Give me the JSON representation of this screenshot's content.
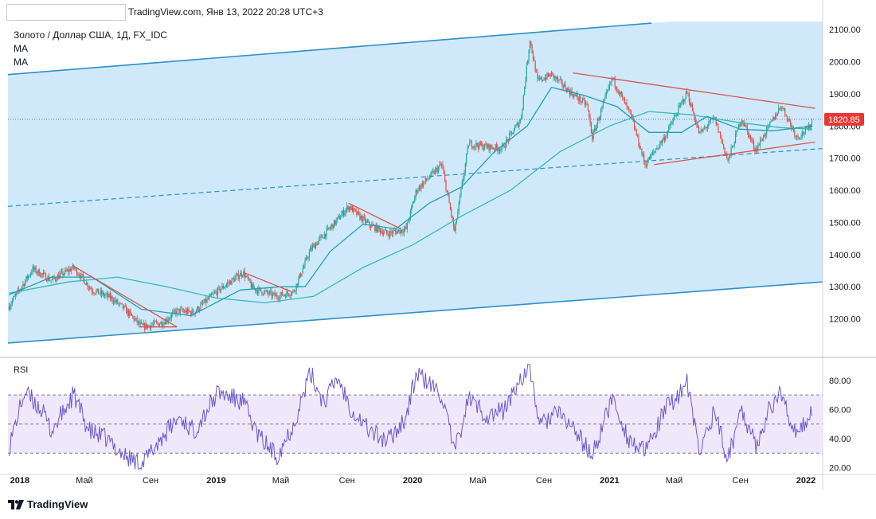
{
  "header": {
    "title": "TradingView.com, Янв 13, 2022 20:28 UTC+3"
  },
  "legend": {
    "symbol": "Золото / Доллар США, 1Д, FX_IDC",
    "ma1": "MA",
    "ma2": "MA"
  },
  "rsi": {
    "label": "RSI"
  },
  "logo": {
    "text": "TradingView",
    "icon": "tradingview-logo-icon"
  },
  "colors": {
    "channel_fill": "#cfe9fb",
    "channel_line": "#2e8fc9",
    "candle_up": "#26a69a",
    "candle_down": "#e0504a",
    "ma_fast": "#1f9fb3",
    "ma_slow": "#36b9b0",
    "trend_red": "#d9534f",
    "rsi_line": "#6a5acd",
    "rsi_band": "#efe8fb",
    "price_badge": "#e53935"
  },
  "chart_data": {
    "type": "candlestick",
    "symbol": "Золото / Доллар США, 1Д, FX_IDC",
    "price_axis": {
      "range": [
        1100,
        2125
      ],
      "ticks": [
        "2100.00",
        "2000.00",
        "1900.00",
        "1800.00",
        "1700.00",
        "1600.00",
        "1500.00",
        "1400.00",
        "1300.00",
        "1200.00"
      ]
    },
    "last_price": "1820.85",
    "time_axis": {
      "range": [
        "2017-12-10",
        "2022-02-01"
      ],
      "ticks": [
        {
          "label": "2018",
          "date": "2018-01-01"
        },
        {
          "label": "Май",
          "date": "2018-05-01"
        },
        {
          "label": "Сен",
          "date": "2018-09-01"
        },
        {
          "label": "2019",
          "date": "2019-01-01"
        },
        {
          "label": "Май",
          "date": "2019-05-01"
        },
        {
          "label": "Сен",
          "date": "2019-09-01"
        },
        {
          "label": "2020",
          "date": "2020-01-01"
        },
        {
          "label": "Май",
          "date": "2020-05-01"
        },
        {
          "label": "Сен",
          "date": "2020-09-01"
        },
        {
          "label": "2021",
          "date": "2021-01-01"
        },
        {
          "label": "Май",
          "date": "2021-05-01"
        },
        {
          "label": "Сен",
          "date": "2021-09-01"
        },
        {
          "label": "2022",
          "date": "2022-01-01"
        }
      ]
    },
    "price_path": [
      [
        "2017-12-12",
        1240
      ],
      [
        "2018-01-25",
        1355
      ],
      [
        "2018-03-01",
        1320
      ],
      [
        "2018-04-11",
        1360
      ],
      [
        "2018-05-15",
        1290
      ],
      [
        "2018-06-20",
        1265
      ],
      [
        "2018-07-15",
        1230
      ],
      [
        "2018-08-16",
        1175
      ],
      [
        "2018-09-25",
        1190
      ],
      [
        "2018-10-20",
        1225
      ],
      [
        "2018-11-20",
        1220
      ],
      [
        "2018-12-31",
        1282
      ],
      [
        "2019-02-20",
        1345
      ],
      [
        "2019-03-10",
        1295
      ],
      [
        "2019-04-23",
        1270
      ],
      [
        "2019-05-25",
        1285
      ],
      [
        "2019-06-25",
        1415
      ],
      [
        "2019-08-10",
        1500
      ],
      [
        "2019-09-04",
        1550
      ],
      [
        "2019-10-10",
        1495
      ],
      [
        "2019-11-15",
        1465
      ],
      [
        "2019-12-20",
        1480
      ],
      [
        "2020-01-08",
        1600
      ],
      [
        "2020-02-24",
        1680
      ],
      [
        "2020-03-19",
        1470
      ],
      [
        "2020-04-14",
        1745
      ],
      [
        "2020-05-20",
        1735
      ],
      [
        "2020-06-15",
        1730
      ],
      [
        "2020-07-20",
        1820
      ],
      [
        "2020-08-06",
        2070
      ],
      [
        "2020-08-20",
        1940
      ],
      [
        "2020-09-15",
        1960
      ],
      [
        "2020-10-20",
        1905
      ],
      [
        "2020-11-20",
        1865
      ],
      [
        "2020-11-30",
        1765
      ],
      [
        "2021-01-06",
        1950
      ],
      [
        "2021-02-10",
        1830
      ],
      [
        "2021-03-08",
        1680
      ],
      [
        "2021-04-15",
        1770
      ],
      [
        "2021-05-25",
        1905
      ],
      [
        "2021-06-17",
        1775
      ],
      [
        "2021-07-15",
        1825
      ],
      [
        "2021-08-09",
        1690
      ],
      [
        "2021-09-03",
        1825
      ],
      [
        "2021-09-29",
        1725
      ],
      [
        "2021-10-25",
        1800
      ],
      [
        "2021-11-16",
        1865
      ],
      [
        "2021-12-15",
        1765
      ],
      [
        "2022-01-05",
        1790
      ],
      [
        "2022-01-13",
        1820
      ]
    ],
    "ma_fast_path": [
      [
        "2017-12-12",
        1275
      ],
      [
        "2018-03-01",
        1330
      ],
      [
        "2018-05-15",
        1330
      ],
      [
        "2018-08-15",
        1230
      ],
      [
        "2018-11-15",
        1210
      ],
      [
        "2019-02-15",
        1290
      ],
      [
        "2019-05-01",
        1300
      ],
      [
        "2019-06-15",
        1300
      ],
      [
        "2019-08-01",
        1410
      ],
      [
        "2019-10-01",
        1495
      ],
      [
        "2019-12-01",
        1480
      ],
      [
        "2020-02-01",
        1560
      ],
      [
        "2020-04-01",
        1610
      ],
      [
        "2020-06-01",
        1720
      ],
      [
        "2020-08-01",
        1800
      ],
      [
        "2020-09-15",
        1920
      ],
      [
        "2020-11-15",
        1895
      ],
      [
        "2021-01-15",
        1860
      ],
      [
        "2021-03-15",
        1780
      ],
      [
        "2021-05-15",
        1780
      ],
      [
        "2021-07-01",
        1830
      ],
      [
        "2021-09-01",
        1790
      ],
      [
        "2021-11-01",
        1785
      ],
      [
        "2022-01-13",
        1800
      ]
    ],
    "ma_slow_path": [
      [
        "2017-12-12",
        1280
      ],
      [
        "2018-04-01",
        1315
      ],
      [
        "2018-07-01",
        1330
      ],
      [
        "2018-10-01",
        1300
      ],
      [
        "2019-01-01",
        1265
      ],
      [
        "2019-04-01",
        1250
      ],
      [
        "2019-07-01",
        1270
      ],
      [
        "2019-10-01",
        1360
      ],
      [
        "2020-01-01",
        1430
      ],
      [
        "2020-04-01",
        1520
      ],
      [
        "2020-07-01",
        1600
      ],
      [
        "2020-10-01",
        1720
      ],
      [
        "2021-01-01",
        1800
      ],
      [
        "2021-03-15",
        1845
      ],
      [
        "2021-06-01",
        1835
      ],
      [
        "2021-09-01",
        1810
      ],
      [
        "2021-11-15",
        1795
      ],
      [
        "2022-01-13",
        1790
      ]
    ],
    "channel": {
      "upper": [
        [
          "2017-12-10",
          1960
        ],
        [
          "2021-03-20",
          2120
        ]
      ],
      "lower": [
        [
          "2017-12-10",
          1125
        ],
        [
          "2022-02-01",
          1315
        ]
      ],
      "mid_dashed": [
        [
          "2017-12-10",
          1550
        ],
        [
          "2022-02-01",
          1730
        ]
      ]
    },
    "trend_lines": [
      [
        [
          "2018-04-10",
          1365
        ],
        [
          "2018-10-20",
          1175
        ]
      ],
      [
        [
          "2018-08-10",
          1175
        ],
        [
          "2018-10-20",
          1175
        ]
      ],
      [
        [
          "2019-02-20",
          1345
        ],
        [
          "2019-05-20",
          1285
        ]
      ],
      [
        [
          "2019-09-04",
          1560
        ],
        [
          "2019-12-10",
          1480
        ]
      ],
      [
        [
          "2020-10-25",
          1965
        ],
        [
          "2022-01-18",
          1855
        ]
      ],
      [
        [
          "2021-03-25",
          1680
        ],
        [
          "2022-01-18",
          1750
        ]
      ]
    ],
    "rsi_axis": {
      "range": [
        17,
        92
      ],
      "ticks": [
        "80.00",
        "60.00",
        "40.00",
        "20.00"
      ],
      "overbought": 70,
      "oversold": 30,
      "mid": 50
    },
    "rsi_path": [
      [
        "2017-12-12",
        35
      ],
      [
        "2018-01-10",
        72
      ],
      [
        "2018-02-10",
        60
      ],
      [
        "2018-03-01",
        45
      ],
      [
        "2018-04-11",
        70
      ],
      [
        "2018-05-10",
        45
      ],
      [
        "2018-06-10",
        40
      ],
      [
        "2018-07-15",
        28
      ],
      [
        "2018-08-16",
        22
      ],
      [
        "2018-09-20",
        40
      ],
      [
        "2018-10-25",
        55
      ],
      [
        "2018-11-20",
        45
      ],
      [
        "2019-01-05",
        72
      ],
      [
        "2019-02-20",
        65
      ],
      [
        "2019-03-20",
        42
      ],
      [
        "2019-04-23",
        28
      ],
      [
        "2019-05-25",
        50
      ],
      [
        "2019-06-25",
        85
      ],
      [
        "2019-07-20",
        65
      ],
      [
        "2019-08-15",
        82
      ],
      [
        "2019-09-10",
        60
      ],
      [
        "2019-10-15",
        45
      ],
      [
        "2019-11-15",
        38
      ],
      [
        "2019-12-20",
        55
      ],
      [
        "2020-01-08",
        85
      ],
      [
        "2020-02-24",
        70
      ],
      [
        "2020-03-19",
        30
      ],
      [
        "2020-04-14",
        68
      ],
      [
        "2020-05-20",
        55
      ],
      [
        "2020-06-20",
        60
      ],
      [
        "2020-07-20",
        82
      ],
      [
        "2020-08-06",
        88
      ],
      [
        "2020-08-25",
        48
      ],
      [
        "2020-09-20",
        58
      ],
      [
        "2020-10-20",
        50
      ],
      [
        "2020-11-30",
        28
      ],
      [
        "2021-01-06",
        68
      ],
      [
        "2021-02-05",
        40
      ],
      [
        "2021-03-08",
        30
      ],
      [
        "2021-04-15",
        60
      ],
      [
        "2021-05-25",
        78
      ],
      [
        "2021-06-17",
        30
      ],
      [
        "2021-07-15",
        60
      ],
      [
        "2021-08-09",
        25
      ],
      [
        "2021-09-03",
        62
      ],
      [
        "2021-09-29",
        35
      ],
      [
        "2021-10-25",
        60
      ],
      [
        "2021-11-16",
        72
      ],
      [
        "2021-12-15",
        40
      ],
      [
        "2022-01-05",
        55
      ],
      [
        "2022-01-13",
        60
      ]
    ]
  }
}
